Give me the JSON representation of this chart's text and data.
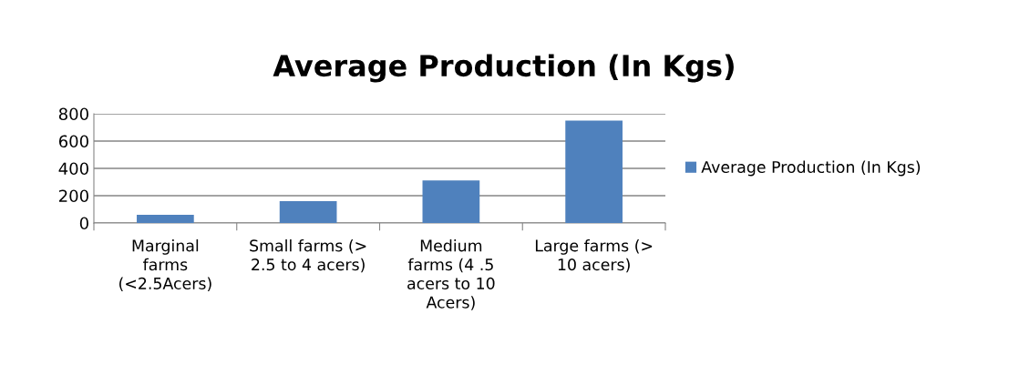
{
  "chart_data": {
    "type": "bar",
    "title": "Average Production (In Kgs)",
    "categories": [
      "Marginal\nfarms\n(<2.5Acers)",
      "Small farms (>\n2.5 to 4 acers)",
      "Medium\nfarms (4 .5\nacers to 10\nAcers)",
      "Large farms (>\n10 acers)"
    ],
    "series": [
      {
        "name": "Average Production (In Kgs)",
        "color": "#4f81bd",
        "values": [
          60,
          160,
          312,
          750
        ]
      }
    ],
    "ylim": [
      0,
      800
    ],
    "yticks": [
      0,
      200,
      400,
      600,
      800
    ],
    "grid": "y",
    "legend": "right"
  }
}
